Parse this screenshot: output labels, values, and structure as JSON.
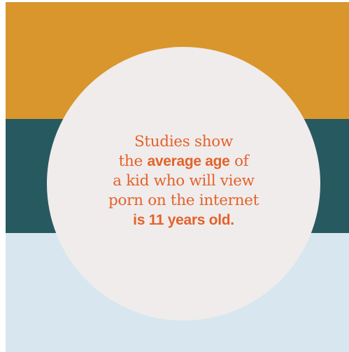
{
  "colors": {
    "top_band": "#d8962d",
    "middle_band": "#275a60",
    "bottom_band": "#d8e7ef",
    "circle": "#f0ecec",
    "text": "#e3622a"
  },
  "quote": {
    "line1": "Studies show",
    "line2_pre": "the ",
    "line2_bold": "average age",
    "line2_post": " of",
    "line3": "a kid who will view",
    "line4": "porn on the internet",
    "line5_bold": "is 11 years old."
  }
}
